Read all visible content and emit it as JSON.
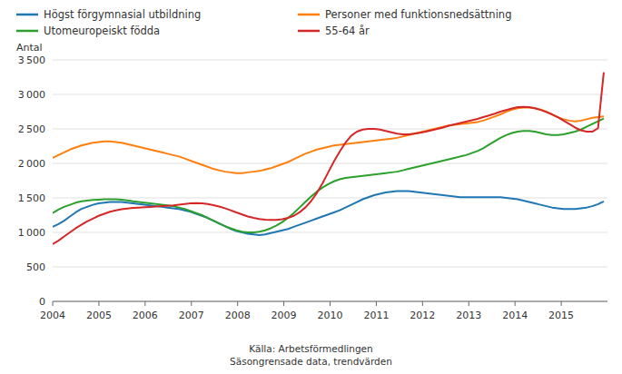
{
  "chart_data": {
    "type": "line",
    "ylabel": "Antal",
    "source": "Källa: Arbetsförmedlingen\nSäsongrensade data, trendvärden",
    "xlim": [
      2004,
      2016.0
    ],
    "xticks": [
      2004,
      2005,
      2006,
      2007,
      2008,
      2009,
      2010,
      2011,
      2012,
      2013,
      2014,
      2015
    ],
    "ylim": [
      0,
      3500
    ],
    "yticks": [
      0,
      500,
      {
        "value": 1000,
        "label": "1 000"
      },
      {
        "value": 1500,
        "label": "1 500"
      },
      {
        "value": 2000,
        "label": "2 000"
      },
      {
        "value": 2500,
        "label": "2 500"
      },
      {
        "value": 3000,
        "label": "3 000"
      },
      {
        "value": 3500,
        "label": "3 500"
      }
    ],
    "grid": "y",
    "legend": "top",
    "x": [
      2004,
      2004.1241667,
      2004.2483333,
      2004.3725,
      2004.4966667,
      2004.6208333,
      2004.745,
      2004.8691667,
      2004.9933333,
      2005.1175,
      2005.2416667,
      2005.3658333,
      2005.49,
      2005.6141667,
      2005.7383333,
      2005.8625,
      2005.9866667,
      2006.1108333,
      2006.235,
      2006.3591667,
      2006.4833333,
      2006.6075,
      2006.7316667,
      2006.8558333,
      2006.98,
      2007.1041667,
      2007.2283333,
      2007.3525,
      2007.4766667,
      2007.6008333,
      2007.725,
      2007.8491667,
      2007.9733333,
      2008.0975,
      2008.2216667,
      2008.3458333,
      2008.47,
      2008.5941667,
      2008.7183333,
      2008.8425,
      2008.9666667,
      2009.0908333,
      2009.215,
      2009.3391667,
      2009.4633333,
      2009.5875,
      2009.7116667,
      2009.8358333,
      2009.96,
      2010.0841667,
      2010.2083333,
      2010.3325,
      2010.4566667,
      2010.5808333,
      2010.705,
      2010.8291667,
      2010.9533333,
      2011.0775,
      2011.2016667,
      2011.3258333,
      2011.45,
      2011.5741667,
      2011.6983333,
      2011.8225,
      2011.9466667,
      2012.0708333,
      2012.195,
      2012.3191667,
      2012.4433333,
      2012.5675,
      2012.6916667,
      2012.8158333,
      2012.94,
      2013.0641667,
      2013.1883333,
      2013.3125,
      2013.4366667,
      2013.5608333,
      2013.685,
      2013.8091667,
      2013.9333333,
      2014.0575,
      2014.1816667,
      2014.3058333,
      2014.43,
      2014.5541667,
      2014.6783333,
      2014.8025,
      2014.9266667,
      2015.0508333,
      2015.175,
      2015.2991667,
      2015.4233333,
      2015.5475,
      2015.6716667,
      2015.7958333,
      2015.92
    ],
    "series": [
      {
        "name": "Högst förgymnasial utbildning",
        "values": [
          1080,
          1120,
          1170,
          1230,
          1290,
          1340,
          1370,
          1400,
          1420,
          1430,
          1440,
          1440,
          1440,
          1430,
          1420,
          1410,
          1400,
          1390,
          1380,
          1370,
          1360,
          1350,
          1340,
          1320,
          1300,
          1270,
          1240,
          1210,
          1170,
          1130,
          1090,
          1050,
          1020,
          1000,
          980,
          970,
          960,
          970,
          990,
          1010,
          1030,
          1050,
          1080,
          1110,
          1140,
          1170,
          1200,
          1230,
          1260,
          1290,
          1320,
          1360,
          1400,
          1440,
          1480,
          1510,
          1540,
          1560,
          1580,
          1590,
          1600,
          1600,
          1600,
          1590,
          1580,
          1570,
          1560,
          1550,
          1540,
          1530,
          1520,
          1510,
          1510,
          1510,
          1510,
          1510,
          1510,
          1510,
          1510,
          1500,
          1490,
          1480,
          1460,
          1440,
          1420,
          1400,
          1380,
          1360,
          1350,
          1340,
          1340,
          1340,
          1350,
          1360,
          1380,
          1410,
          1450
        ]
      },
      {
        "name": "Personer med funktionsnedsättning",
        "values": [
          2080,
          2120,
          2160,
          2200,
          2230,
          2260,
          2280,
          2300,
          2310,
          2320,
          2320,
          2310,
          2300,
          2280,
          2260,
          2240,
          2220,
          2200,
          2180,
          2160,
          2140,
          2120,
          2100,
          2070,
          2040,
          2010,
          1980,
          1950,
          1920,
          1900,
          1880,
          1870,
          1860,
          1860,
          1870,
          1880,
          1890,
          1910,
          1930,
          1960,
          1990,
          2020,
          2060,
          2100,
          2140,
          2170,
          2200,
          2220,
          2240,
          2260,
          2270,
          2280,
          2290,
          2300,
          2310,
          2320,
          2330,
          2340,
          2350,
          2360,
          2370,
          2390,
          2410,
          2430,
          2450,
          2470,
          2490,
          2510,
          2530,
          2550,
          2560,
          2570,
          2580,
          2590,
          2600,
          2620,
          2650,
          2680,
          2710,
          2750,
          2780,
          2800,
          2810,
          2810,
          2800,
          2780,
          2750,
          2710,
          2670,
          2640,
          2620,
          2610,
          2620,
          2640,
          2660,
          2670,
          2680
        ]
      },
      {
        "name": "Utomeuropeiskt födda",
        "values": [
          1280,
          1330,
          1370,
          1400,
          1430,
          1450,
          1460,
          1470,
          1475,
          1480,
          1480,
          1480,
          1475,
          1465,
          1450,
          1440,
          1430,
          1420,
          1410,
          1400,
          1390,
          1380,
          1360,
          1340,
          1310,
          1280,
          1250,
          1210,
          1170,
          1130,
          1090,
          1060,
          1030,
          1010,
          1000,
          1000,
          1010,
          1030,
          1060,
          1100,
          1150,
          1210,
          1280,
          1360,
          1440,
          1520,
          1590,
          1650,
          1700,
          1740,
          1770,
          1790,
          1800,
          1810,
          1820,
          1830,
          1840,
          1850,
          1860,
          1870,
          1880,
          1900,
          1920,
          1940,
          1960,
          1980,
          2000,
          2020,
          2040,
          2060,
          2080,
          2100,
          2120,
          2150,
          2180,
          2220,
          2270,
          2320,
          2370,
          2410,
          2440,
          2460,
          2470,
          2470,
          2460,
          2440,
          2420,
          2410,
          2410,
          2420,
          2440,
          2460,
          2490,
          2530,
          2570,
          2610,
          2650
        ]
      },
      {
        "name": "55-64 år",
        "values": [
          830,
          880,
          940,
          1000,
          1060,
          1110,
          1160,
          1200,
          1240,
          1270,
          1300,
          1320,
          1335,
          1345,
          1355,
          1360,
          1365,
          1370,
          1375,
          1380,
          1385,
          1390,
          1400,
          1410,
          1420,
          1425,
          1420,
          1410,
          1395,
          1375,
          1350,
          1320,
          1290,
          1260,
          1230,
          1210,
          1195,
          1185,
          1180,
          1180,
          1190,
          1210,
          1240,
          1290,
          1360,
          1450,
          1570,
          1710,
          1870,
          2030,
          2170,
          2300,
          2400,
          2460,
          2490,
          2500,
          2500,
          2490,
          2470,
          2450,
          2430,
          2420,
          2420,
          2430,
          2445,
          2460,
          2480,
          2500,
          2520,
          2545,
          2565,
          2585,
          2605,
          2625,
          2645,
          2670,
          2695,
          2720,
          2750,
          2775,
          2795,
          2815,
          2820,
          2815,
          2800,
          2775,
          2745,
          2710,
          2670,
          2620,
          2570,
          2520,
          2480,
          2460,
          2460,
          2510,
          3320
        ]
      }
    ]
  }
}
